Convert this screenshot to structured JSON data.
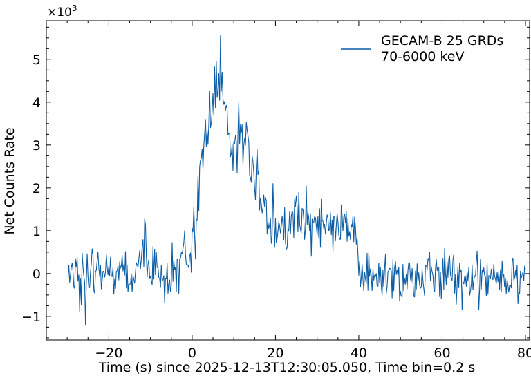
{
  "chart_data": {
    "type": "line",
    "title": "",
    "xlabel": "Time (s) since 2025-12-13T12:30:05.050, Time bin=0.2 s",
    "ylabel": "Net Counts Rate",
    "y_multiplier_label": "×10",
    "y_multiplier_exponent": "3",
    "xlim": [
      -35,
      81
    ],
    "ylim": [
      -1.55,
      5.9
    ],
    "y_units": "thousands",
    "x_ticks": [
      -20,
      0,
      20,
      40,
      60,
      80
    ],
    "x_tick_labels": [
      "−20",
      "0",
      "20",
      "40",
      "60",
      "80"
    ],
    "y_ticks": [
      -1,
      0,
      1,
      2,
      3,
      4,
      5
    ],
    "y_tick_labels": [
      "−1",
      "0",
      "1",
      "2",
      "3",
      "4",
      "5"
    ],
    "grid": false,
    "legend_position": "top-right",
    "bin_width_s": 0.2,
    "series": [
      {
        "name": "GECAM-B 25 GRDs\n70-6000 keV",
        "legend_lines": [
          "GECAM-B 25 GRDs",
          "70-6000 keV"
        ],
        "color": "#0c5da5",
        "x": [
          -30,
          -28,
          -26.5,
          -24,
          -22,
          -20,
          -18,
          -16,
          -14,
          -12.5,
          -11.5,
          -10,
          -8,
          -6,
          -4,
          -2,
          -1,
          0,
          0.5,
          1,
          1.5,
          2,
          2.5,
          3,
          3.5,
          4,
          5,
          6,
          6.5,
          7,
          7.5,
          8,
          9,
          10,
          11,
          12,
          13,
          14,
          15,
          16,
          17,
          18,
          19,
          20,
          21,
          22,
          23,
          24,
          26,
          28,
          30,
          32,
          34,
          36,
          38,
          39.5,
          40,
          41,
          42,
          44,
          46,
          48,
          50,
          55,
          60,
          65,
          70,
          75,
          80
        ],
        "y": [
          -0.1,
          0.1,
          -0.2,
          0.0,
          0.1,
          -0.05,
          0.0,
          0.05,
          -0.1,
          0.2,
          0.6,
          0.1,
          0.0,
          -0.1,
          0.1,
          0.3,
          0.5,
          0.7,
          0.9,
          1.3,
          1.8,
          2.6,
          3.1,
          3.5,
          3.7,
          3.9,
          4.1,
          4.3,
          4.5,
          4.4,
          4.0,
          3.7,
          3.3,
          2.7,
          3.1,
          3.2,
          2.9,
          2.6,
          2.2,
          2.0,
          1.7,
          1.3,
          1.05,
          0.9,
          0.85,
          0.9,
          1.1,
          1.5,
          1.3,
          1.1,
          1.0,
          1.1,
          1.0,
          1.05,
          1.0,
          0.95,
          0.3,
          -0.1,
          -0.2,
          -0.15,
          0.0,
          -0.05,
          -0.1,
          -0.1,
          -0.05,
          -0.1,
          0.0,
          -0.05,
          0.0
        ],
        "noise_sigma": 0.3,
        "peak_value": 5.55,
        "min_value": -1.2
      }
    ]
  }
}
